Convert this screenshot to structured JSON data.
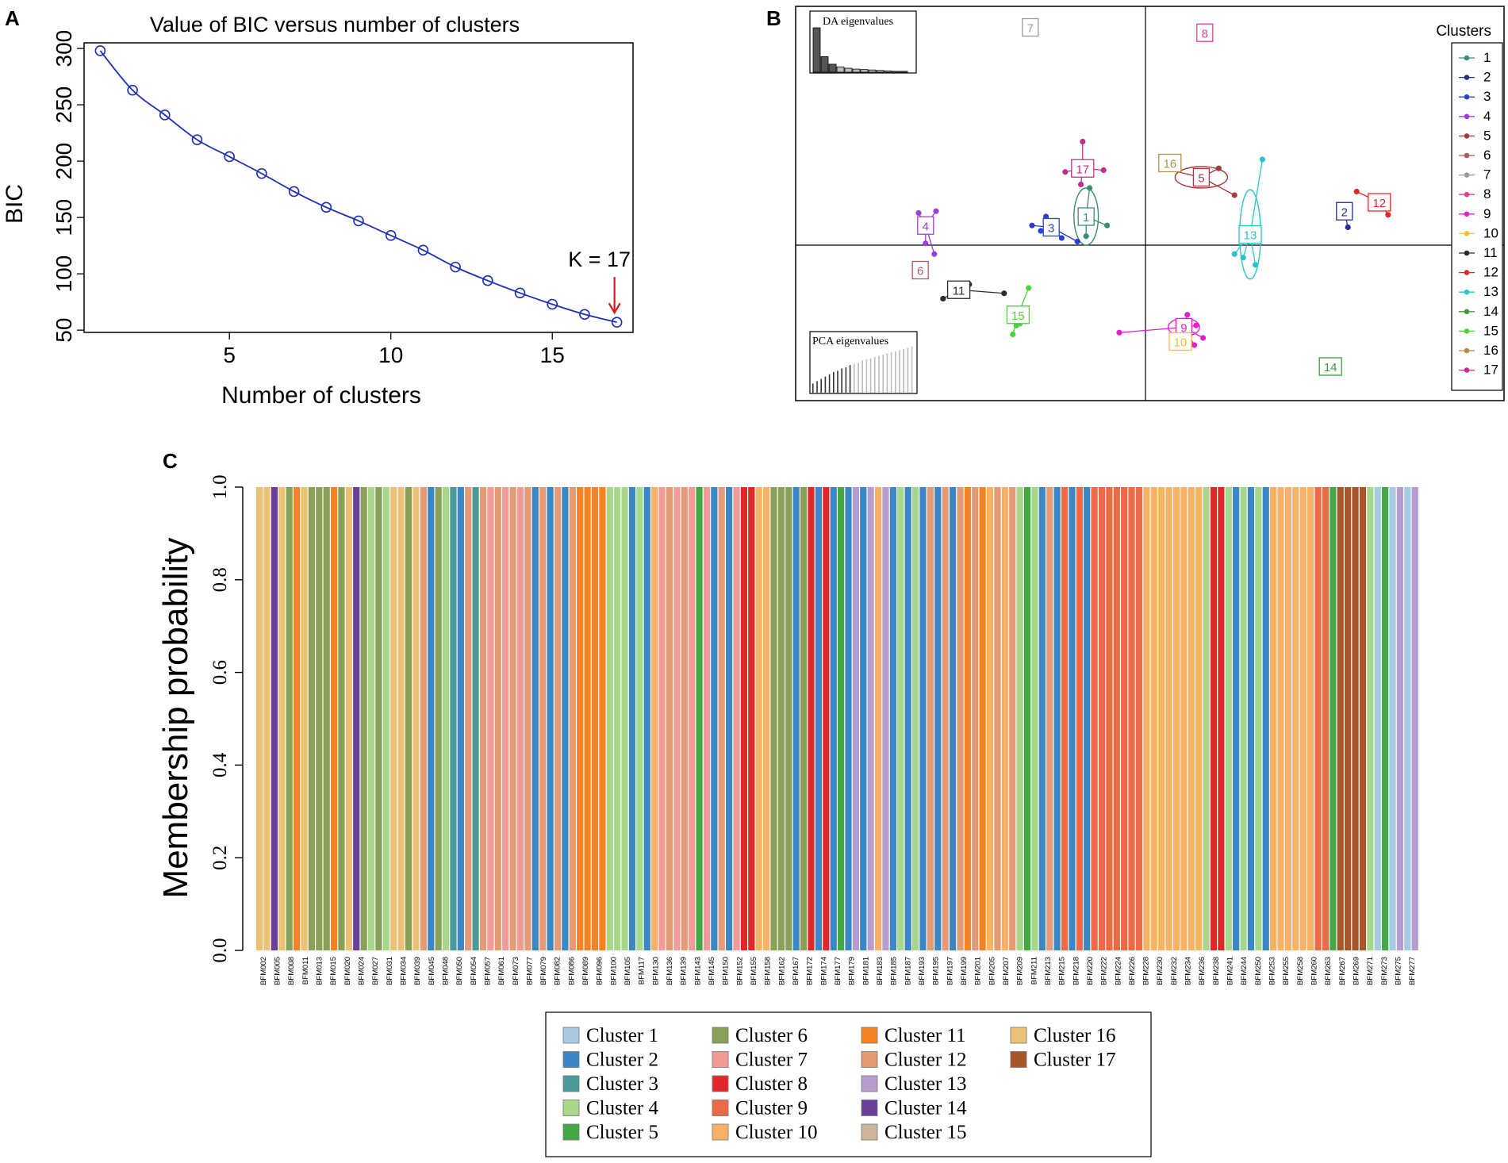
{
  "panels": {
    "a": "A",
    "b": "B",
    "c": "C"
  },
  "chart_data": [
    {
      "type": "line",
      "id": "bic",
      "title": "Value of BIC versus number of clusters",
      "xlabel": "Number of clusters",
      "ylabel": "BIC",
      "xlim": [
        0.5,
        17.5
      ],
      "ylim": [
        48,
        305
      ],
      "xticks": [
        5,
        10,
        15
      ],
      "yticks": [
        50,
        100,
        150,
        200,
        250,
        300
      ],
      "x": [
        1,
        2,
        3,
        4,
        5,
        6,
        7,
        8,
        9,
        10,
        11,
        12,
        13,
        14,
        15,
        16,
        17
      ],
      "y": [
        298,
        263,
        241,
        219,
        204,
        189,
        173,
        159,
        147,
        134,
        121,
        106,
        94,
        83,
        73,
        64,
        57
      ],
      "line_color": "#1f2fb3",
      "annotation": {
        "text": "K = 17",
        "x": 17,
        "arrow_color": "#d7191c"
      }
    },
    {
      "type": "scatter",
      "id": "dapc",
      "legend_title": "Clusters",
      "insets": {
        "da": "DA eigenvalues",
        "pca": "PCA eigenvalues"
      },
      "da_eigenvalues": [
        100,
        35,
        18,
        12,
        9,
        7,
        6,
        5,
        4,
        3,
        2,
        2
      ],
      "pca_eigenvalues": [
        8,
        10,
        12,
        14,
        16,
        18,
        19,
        21,
        22,
        24,
        25,
        26,
        28,
        29,
        30,
        31,
        32,
        33,
        34,
        35,
        36,
        37,
        38,
        39,
        40
      ],
      "pca_retained": 10,
      "xlim": [
        -10,
        10
      ],
      "ylim": [
        -10,
        10
      ],
      "clusters": [
        {
          "id": "1",
          "color": "#3a8f6f",
          "center": [
            -3.4,
            1.6
          ],
          "points": [
            [
              -2.2,
              1.1
            ],
            [
              -3.4,
              0.5
            ],
            [
              -3.2,
              3.2
            ]
          ],
          "ellipse": [
            0.7,
            1.6
          ]
        },
        {
          "id": "2",
          "color": "#2b2e8c",
          "center": [
            11.4,
            1.9
          ],
          "points": [
            [
              11.6,
              1.0
            ]
          ]
        },
        {
          "id": "3",
          "color": "#2a3fd1",
          "center": [
            -5.4,
            1.0
          ],
          "points": [
            [
              -6.5,
              1.1
            ],
            [
              -5.7,
              1.6
            ],
            [
              -4.8,
              0.4
            ],
            [
              -3.9,
              0.2
            ],
            [
              -6.0,
              0.8
            ]
          ]
        },
        {
          "id": "4",
          "color": "#9b40d6",
          "center": [
            -12.6,
            1.1
          ],
          "points": [
            [
              -13.0,
              1.8
            ],
            [
              -12.0,
              1.9
            ],
            [
              -12.6,
              0.1
            ],
            [
              -12.1,
              -0.5
            ]
          ]
        },
        {
          "id": "5",
          "color": "#a33c3c",
          "center": [
            3.2,
            3.8
          ],
          "points": [
            [
              1.0,
              4.3
            ],
            [
              4.2,
              4.3
            ],
            [
              5.1,
              2.8
            ]
          ],
          "ellipse": [
            1.5,
            0.6
          ]
        },
        {
          "id": "6",
          "color": "#b05a5a",
          "center": [
            -12.9,
            -1.4
          ],
          "points": []
        },
        {
          "id": "7",
          "color": "#9a9a9a",
          "center": [
            -6.6,
            12.2
          ],
          "points": []
        },
        {
          "id": "8",
          "color": "#e0409a",
          "center": [
            3.4,
            11.9
          ],
          "points": []
        },
        {
          "id": "9",
          "color": "#e020d0",
          "center": [
            2.2,
            -4.6
          ],
          "points": [
            [
              -1.5,
              -4.9
            ],
            [
              2.4,
              -3.9
            ],
            [
              2.9,
              -4.5
            ],
            [
              3.3,
              -5.2
            ],
            [
              2.8,
              -5.6
            ]
          ],
          "ellipse": [
            0.9,
            0.5
          ]
        },
        {
          "id": "10",
          "color": "#f3c12f",
          "center": [
            2.0,
            -5.4
          ],
          "points": []
        },
        {
          "id": "11",
          "color": "#2c2c2c",
          "center": [
            -10.7,
            -2.5
          ],
          "points": [
            [
              -11.6,
              -3.0
            ],
            [
              -8.1,
              -2.7
            ],
            [
              -10.1,
              -2.2
            ]
          ]
        },
        {
          "id": "12",
          "color": "#e02a2a",
          "center": [
            13.4,
            2.4
          ],
          "points": [
            [
              12.1,
              3.0
            ],
            [
              13.9,
              1.7
            ]
          ]
        },
        {
          "id": "13",
          "color": "#2ac4c9",
          "center": [
            6.0,
            0.6
          ],
          "points": [
            [
              6.7,
              4.8
            ],
            [
              5.1,
              -0.5
            ],
            [
              6.3,
              -1.1
            ],
            [
              5.6,
              -0.7
            ],
            [
              5.9,
              0.2
            ]
          ],
          "ellipse": [
            0.6,
            2.5
          ]
        },
        {
          "id": "14",
          "color": "#3f9a3f",
          "center": [
            10.6,
            -6.8
          ],
          "points": []
        },
        {
          "id": "15",
          "color": "#4bd33a",
          "center": [
            -7.3,
            -3.9
          ],
          "points": [
            [
              -6.7,
              -2.4
            ],
            [
              -7.6,
              -5.0
            ],
            [
              -7.2,
              -4.4
            ],
            [
              -7.4,
              -4.5
            ]
          ]
        },
        {
          "id": "16",
          "color": "#b09045",
          "center": [
            1.4,
            4.6
          ],
          "points": []
        },
        {
          "id": "17",
          "color": "#c0308a",
          "center": [
            -3.6,
            4.3
          ],
          "points": [
            [
              -4.6,
              4.1
            ],
            [
              -2.4,
              4.2
            ],
            [
              -3.6,
              5.8
            ],
            [
              -3.7,
              3.4
            ]
          ]
        }
      ]
    },
    {
      "type": "bar",
      "id": "membership",
      "ylabel": "Membership probability",
      "ylim": [
        0,
        1
      ],
      "yticks": [
        "0.0",
        "0.2",
        "0.4",
        "0.6",
        "0.8",
        "1.0"
      ],
      "legend": [
        {
          "label": "Cluster 1",
          "color": "#a6cbe1"
        },
        {
          "label": "Cluster 2",
          "color": "#3b86c4"
        },
        {
          "label": "Cluster 3",
          "color": "#4a9a9a"
        },
        {
          "label": "Cluster 4",
          "color": "#a6d78a"
        },
        {
          "label": "Cluster 5",
          "color": "#44a845"
        },
        {
          "label": "Cluster 6",
          "color": "#88a058"
        },
        {
          "label": "Cluster 7",
          "color": "#f29b96"
        },
        {
          "label": "Cluster 8",
          "color": "#e0282c"
        },
        {
          "label": "Cluster 9",
          "color": "#ee6a46"
        },
        {
          "label": "Cluster 10",
          "color": "#f8b265"
        },
        {
          "label": "Cluster 11",
          "color": "#f58323"
        },
        {
          "label": "Cluster 12",
          "color": "#e59a76"
        },
        {
          "label": "Cluster 13",
          "color": "#b79ccf"
        },
        {
          "label": "Cluster 14",
          "color": "#6a3e9a"
        },
        {
          "label": "Cluster 15",
          "color": "#ccb59a"
        },
        {
          "label": "Cluster 16",
          "color": "#ebc176"
        },
        {
          "label": "Cluster 17",
          "color": "#a9552a"
        }
      ],
      "sample_labels": [
        "BFM002",
        "BFM005",
        "BFM008",
        "BFM011",
        "BFM013",
        "BFM015",
        "BFM020",
        "BFM024",
        "BFM027",
        "BFM031",
        "BFM034",
        "BFM039",
        "BFM045",
        "BFM048",
        "BFM050",
        "BFM054",
        "BFM057",
        "BFM061",
        "BFM073",
        "BFM077",
        "BFM079",
        "BFM082",
        "BFM086",
        "BFM089",
        "BFM096",
        "BFM100",
        "BFM105",
        "BFM117",
        "BFM130",
        "BFM136",
        "BFM139",
        "BFM143",
        "BFM145",
        "BFM150",
        "BFM152",
        "BFM155",
        "BFM158",
        "BFM162",
        "BFM167",
        "BFM172",
        "BFM174",
        "BFM177",
        "BFM179",
        "BFM181",
        "BFM183",
        "BFM185",
        "BFM187",
        "BFM193",
        "BFM195",
        "BFM197",
        "BFM199",
        "BFM201",
        "BFM205",
        "BFM207",
        "BFM209",
        "BFM211",
        "BFM213",
        "BFM215",
        "BFM218",
        "BFM220",
        "BFM222",
        "BFM224",
        "BFM226",
        "BFM228",
        "BFM230",
        "BFM232",
        "BFM234",
        "BFM236",
        "BFM238",
        "BFM241",
        "BFM244",
        "BFM250",
        "BFM253",
        "BFM255",
        "BFM258",
        "BFM260",
        "BFM263",
        "BFM267",
        "BFM269",
        "BFM271",
        "BFM273",
        "BFM275",
        "BFM277"
      ],
      "bar_clusters": [
        16,
        16,
        14,
        16,
        6,
        11,
        16,
        6,
        6,
        6,
        11,
        6,
        16,
        14,
        6,
        4,
        6,
        4,
        16,
        16,
        6,
        16,
        12,
        2,
        6,
        4,
        3,
        2,
        12,
        3,
        12,
        7,
        12,
        7,
        12,
        7,
        12,
        2,
        12,
        2,
        12,
        2,
        12,
        11,
        11,
        11,
        11,
        4,
        4,
        4,
        2,
        4,
        2,
        10,
        7,
        12,
        7,
        12,
        7,
        5,
        7,
        2,
        12,
        2,
        7,
        8,
        8,
        10,
        10,
        6,
        6,
        6,
        2,
        6,
        8,
        2,
        8,
        2,
        5,
        2,
        13,
        2,
        13,
        10,
        13,
        2,
        4,
        2,
        4,
        2,
        12,
        2,
        12,
        2,
        12,
        11,
        12,
        11,
        10,
        12,
        10,
        12,
        4,
        5,
        4,
        2,
        12,
        2,
        9,
        2,
        9,
        2,
        9,
        9,
        9,
        9,
        9,
        9,
        9,
        10,
        10,
        10,
        10,
        10,
        10,
        10,
        10,
        4,
        8,
        8,
        4,
        2,
        4,
        2,
        4,
        2,
        10,
        10,
        10,
        10,
        10,
        10,
        9,
        9,
        5,
        17,
        17,
        17,
        17,
        4,
        1,
        5,
        1,
        13,
        1,
        13
      ]
    }
  ]
}
